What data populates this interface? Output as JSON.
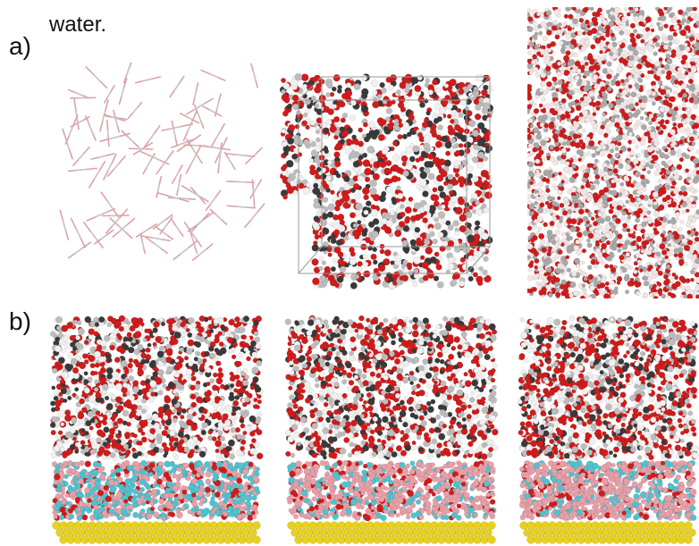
{
  "caption": {
    "line1": "",
    "line2": "water."
  },
  "labels": {
    "a": "a)",
    "b": "b)"
  },
  "colors": {
    "oxygen": "#d01c1c",
    "hydrogen": "#f0f0f0",
    "carbon": "#3a3a3a",
    "pink": "#e8a0a8",
    "cyan": "#4fc4d0",
    "gold": "#e8d020",
    "box": "#9a9a9a"
  }
}
